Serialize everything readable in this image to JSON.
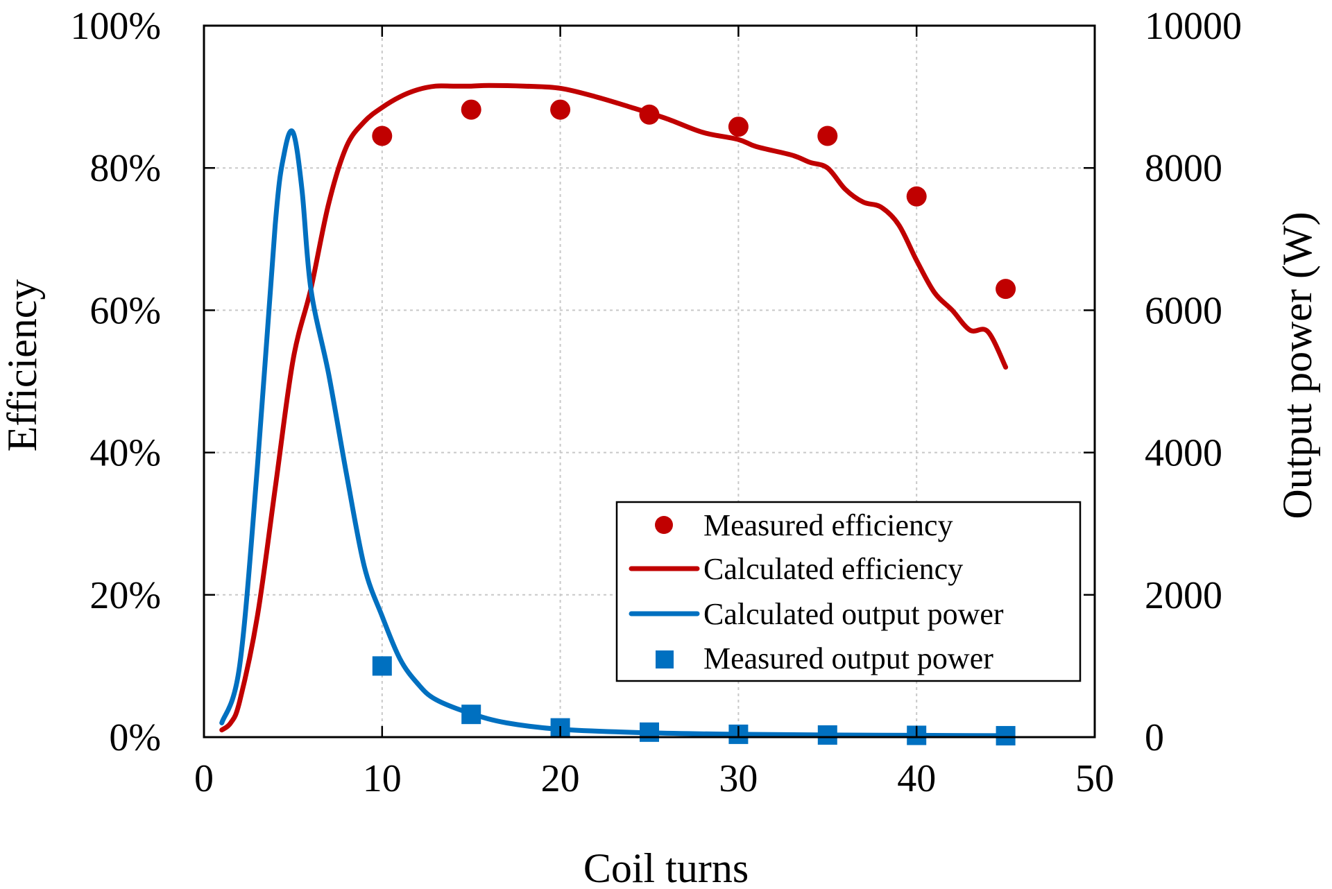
{
  "chart_data": {
    "type": "line",
    "title": "",
    "xlabel": "Coil turns",
    "ylabel_left": "Efficiency",
    "ylabel_right": "Output power (W)",
    "xlim": [
      0,
      50
    ],
    "ylim_left": [
      0,
      100
    ],
    "ylim_right": [
      0,
      10000
    ],
    "x_ticks": [
      "0",
      "10",
      "20",
      "30",
      "40",
      "50"
    ],
    "y_left_ticks": [
      "0%",
      "20%",
      "40%",
      "60%",
      "80%",
      "100%"
    ],
    "y_right_ticks": [
      "0",
      "2000",
      "4000",
      "6000",
      "8000",
      "10000"
    ],
    "grid": true,
    "legend_position": "lower-right",
    "colors": {
      "efficiency": "#c00000",
      "power": "#0070c0"
    },
    "series": [
      {
        "name": "Measured efficiency",
        "axis": "left",
        "style": "marker-circle",
        "x": [
          10,
          15,
          20,
          25,
          30,
          35,
          40,
          45
        ],
        "y": [
          84.5,
          88.2,
          88.2,
          87.5,
          85.8,
          84.5,
          76.0,
          63.0
        ]
      },
      {
        "name": "Calculated efficiency",
        "axis": "left",
        "style": "line",
        "x": [
          1,
          1.5,
          2,
          3,
          4,
          5,
          6,
          7,
          8,
          9,
          10,
          11,
          12,
          13,
          14,
          15,
          16,
          18,
          20,
          22,
          24,
          26,
          28,
          30,
          31,
          33,
          34,
          35,
          36,
          37,
          38,
          39,
          40,
          41,
          42,
          43,
          44,
          45
        ],
        "y": [
          1.0,
          2.0,
          5.0,
          17.0,
          35.0,
          53.0,
          63.0,
          75.0,
          83.0,
          86.5,
          88.5,
          90.0,
          91.0,
          91.5,
          91.5,
          91.5,
          91.6,
          91.5,
          91.2,
          90.0,
          88.5,
          86.9,
          85.0,
          84.0,
          83.0,
          81.8,
          80.8,
          80.0,
          77.0,
          75.2,
          74.5,
          72.0,
          67.0,
          62.5,
          60.0,
          57.2,
          57.0,
          52.0
        ]
      },
      {
        "name": "Calculated output power",
        "axis": "right",
        "style": "line",
        "x": [
          1,
          2,
          3,
          4,
          4.5,
          5,
          5.5,
          6,
          7,
          8,
          9,
          10,
          11,
          12,
          13,
          15,
          17,
          20,
          25,
          30,
          35,
          40,
          45
        ],
        "y": [
          200,
          1000,
          3800,
          7200,
          8200,
          8500,
          7700,
          6300,
          5100,
          3700,
          2400,
          1700,
          1100,
          750,
          530,
          330,
          200,
          110,
          60,
          40,
          30,
          25,
          20
        ]
      },
      {
        "name": "Measured output power",
        "axis": "right",
        "style": "marker-square",
        "x": [
          10,
          15,
          20,
          25,
          30,
          35,
          40,
          45
        ],
        "y": [
          1000,
          320,
          130,
          70,
          40,
          30,
          25,
          20
        ]
      }
    ]
  }
}
